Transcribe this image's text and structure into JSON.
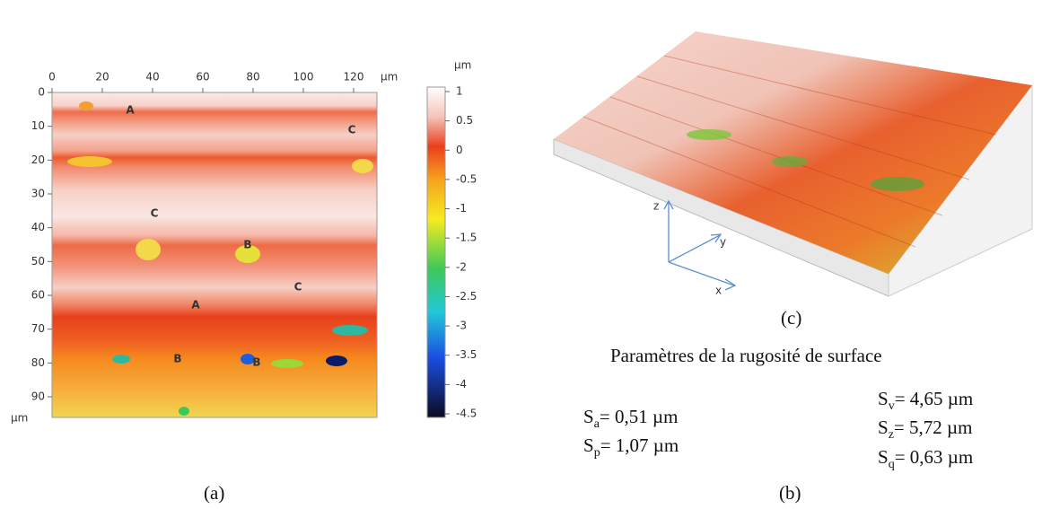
{
  "figure_a": {
    "x_ticks": [
      0,
      20,
      40,
      60,
      80,
      100,
      120
    ],
    "x_unit": "µm",
    "y_ticks": [
      0,
      10,
      20,
      30,
      40,
      50,
      60,
      70,
      80,
      90
    ],
    "y_unit": "µm",
    "colorbar_unit": "µm",
    "colorbar_ticks": [
      1,
      0.5,
      0,
      -0.5,
      -1,
      -1.5,
      -2,
      -2.5,
      -3,
      -3.5,
      -4,
      -4.5
    ],
    "annotations": [
      "A",
      "C",
      "C",
      "B",
      "C",
      "A",
      "B",
      "B"
    ],
    "caption": "(a)"
  },
  "figure_c": {
    "axes": [
      "z",
      "y",
      "x"
    ],
    "caption": "(c)"
  },
  "figure_b": {
    "title": "Paramètres de la rugosité de surface",
    "parameters": [
      {
        "symbol": "S",
        "subscript": "a",
        "text": "= 0,51 µm"
      },
      {
        "symbol": "S",
        "subscript": "p",
        "text": "= 1,07 µm"
      },
      {
        "symbol": "S",
        "subscript": "v",
        "text": "= 4,65 µm"
      },
      {
        "symbol": "S",
        "subscript": "z",
        "text": "= 5,72 µm"
      },
      {
        "symbol": "S",
        "subscript": "q",
        "text": "= 0,63 µm"
      }
    ],
    "caption": "(b)"
  }
}
